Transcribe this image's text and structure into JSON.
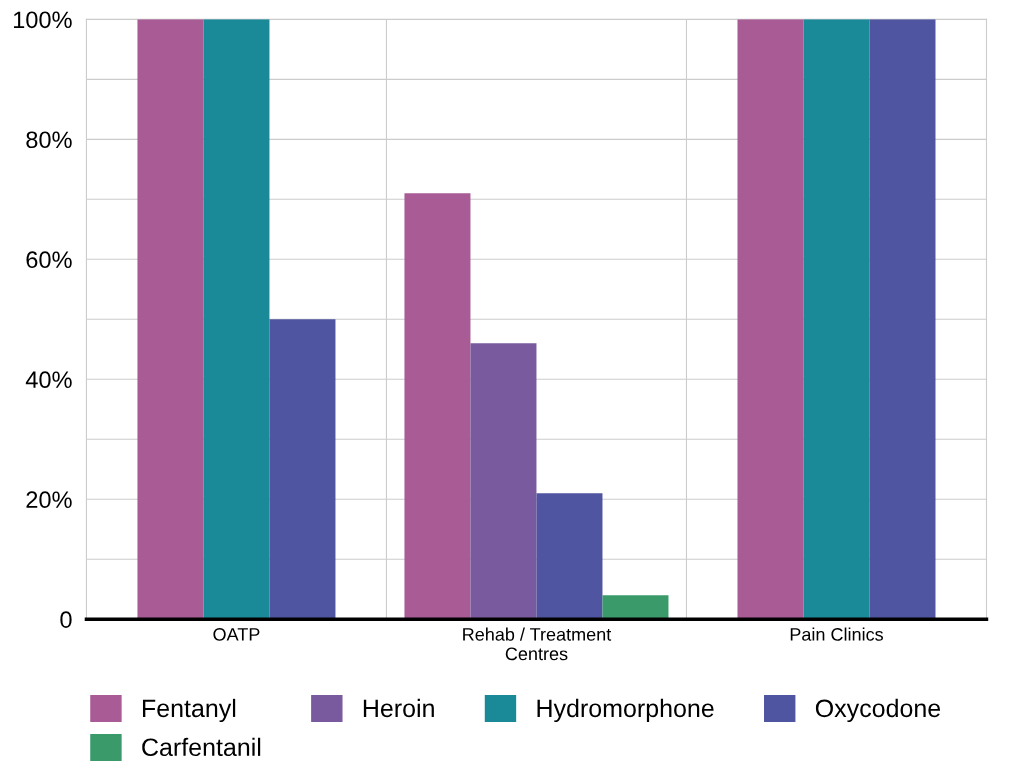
{
  "chart_data": {
    "type": "bar",
    "categories": [
      "OATP",
      "Rehab / Treatment\nCentres",
      "Pain Clinics"
    ],
    "series": [
      {
        "name": "Fentanyl",
        "color": "#a95b96",
        "values": [
          100,
          71,
          100
        ]
      },
      {
        "name": "Heroin",
        "color": "#7a5a9e",
        "values": [
          null,
          46,
          null
        ]
      },
      {
        "name": "Hydromorphone",
        "color": "#1a8a98",
        "values": [
          100,
          null,
          100
        ]
      },
      {
        "name": "Oxycodone",
        "color": "#4f55a0",
        "values": [
          50,
          21,
          100
        ]
      },
      {
        "name": "Carfentanil",
        "color": "#3a9a6a",
        "values": [
          null,
          4,
          null
        ]
      }
    ],
    "ylim": [
      0,
      100
    ],
    "yticks": [
      "0",
      {
        "value": 10,
        "label": null
      },
      {
        "value": 20,
        "label": "20%"
      },
      {
        "value": 30,
        "label": null
      },
      {
        "value": 40,
        "label": "40%"
      },
      {
        "value": 50,
        "label": null
      },
      {
        "value": 60,
        "label": "60%"
      },
      {
        "value": 70,
        "label": null
      },
      {
        "value": 80,
        "label": "80%"
      },
      {
        "value": 90,
        "label": null
      },
      {
        "value": 100,
        "label": "100%"
      }
    ],
    "grid": true,
    "legend": "bottom"
  }
}
